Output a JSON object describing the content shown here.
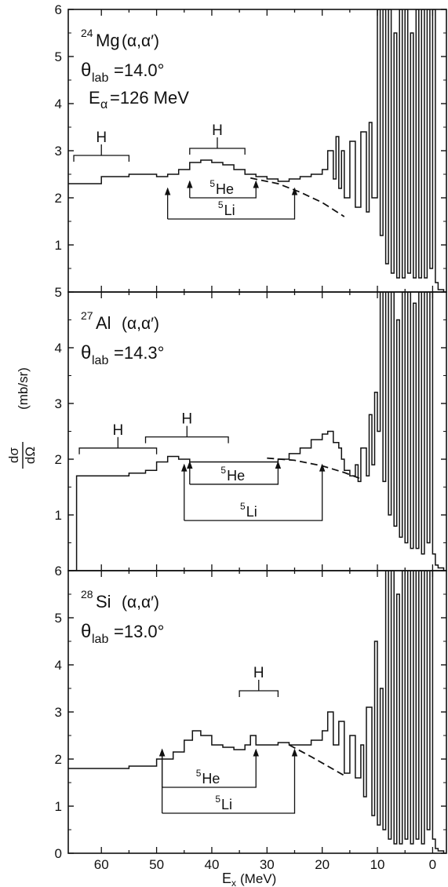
{
  "figure": {
    "ylabel_top": "dσ",
    "ylabel_bottom": "dΩ",
    "ylabel_unit": "(mb/sr)",
    "xlabel_main": "E",
    "xlabel_sub": "x",
    "xlabel_unit": "(MeV)",
    "x_ticks": [
      "60",
      "50",
      "40",
      "30",
      "20",
      "10",
      "0"
    ]
  },
  "chart_data": [
    {
      "type": "line",
      "reaction": {
        "mass": "24",
        "element": "Mg",
        "process": "(α,α′)"
      },
      "angle": {
        "symbol": "θ",
        "sub": "lab",
        "text": "=14.0°"
      },
      "energy": {
        "symbol": "E",
        "sub": "α",
        "text": "=126 MeV"
      },
      "x_reversed": true,
      "xlim": [
        -2.5,
        66
      ],
      "ylim": [
        0,
        6
      ],
      "y_ticks": [
        "6",
        "5",
        "4",
        "3",
        "2",
        "1"
      ],
      "series": [
        {
          "values_x": [
            66,
            60,
            55,
            50,
            48,
            46,
            44,
            42,
            40,
            38,
            36,
            34,
            32,
            30,
            28,
            26,
            24,
            22,
            20,
            19,
            18,
            17.5,
            17,
            16.5,
            16,
            15,
            14,
            13,
            12,
            11.5,
            11,
            10,
            9.5,
            9,
            8.5,
            8,
            7.5,
            7,
            6.5,
            6,
            5.5,
            5,
            4.5,
            4,
            3.5,
            3,
            2.5,
            2,
            1.5,
            1,
            0.5,
            0,
            -0.5,
            -1,
            -2
          ],
          "values_y": [
            2.3,
            2.45,
            2.5,
            2.45,
            2.5,
            2.6,
            2.75,
            2.8,
            2.75,
            2.7,
            2.6,
            2.5,
            2.45,
            2.4,
            2.35,
            2.4,
            2.45,
            2.5,
            2.6,
            3.0,
            2.4,
            3.3,
            2.2,
            3.0,
            2.0,
            3.2,
            1.8,
            3.4,
            1.7,
            3.6,
            2.0,
            6.0,
            1.2,
            6.0,
            0.6,
            6.0,
            0.4,
            5.5,
            0.3,
            6.0,
            0.3,
            6.0,
            0.4,
            5.5,
            0.3,
            6.0,
            0.3,
            6.0,
            0.3,
            6.0,
            0.5,
            6.0,
            0.2,
            0.05,
            0.0
          ]
        },
        {
          "name": "background",
          "values_x": [
            33,
            28,
            24,
            20,
            16
          ],
          "values_y": [
            2.42,
            2.3,
            2.12,
            1.9,
            1.6
          ],
          "style": "dashed"
        }
      ],
      "brackets": [
        {
          "label": "H",
          "x_from": 65,
          "x_to": 55
        },
        {
          "label": "H",
          "x_from": 44,
          "x_to": 34
        }
      ],
      "arrows": [
        {
          "label": "5He",
          "mass": "5",
          "element": "He",
          "x_from": 44,
          "x_to": 32
        },
        {
          "label": "5Li",
          "mass": "5",
          "element": "Li",
          "x_from": 48,
          "x_to": 25
        }
      ]
    },
    {
      "type": "line",
      "reaction": {
        "mass": "27",
        "element": "Al",
        "process": "(α,α′)"
      },
      "angle": {
        "symbol": "θ",
        "sub": "lab",
        "text": "=14.3°"
      },
      "x_reversed": true,
      "xlim": [
        -2.5,
        66
      ],
      "ylim": [
        0,
        5
      ],
      "y_ticks": [
        "5",
        "4",
        "3",
        "2",
        "1"
      ],
      "series": [
        {
          "values_x": [
            65,
            64.5,
            60,
            55,
            52,
            50,
            48,
            46,
            44,
            40,
            36,
            32,
            28,
            26,
            24,
            22,
            20,
            19,
            18,
            17,
            16.5,
            16,
            15,
            14,
            13.5,
            13,
            12,
            11.5,
            11,
            10.5,
            10,
            9.5,
            9,
            8.5,
            8,
            7.5,
            7,
            6.5,
            6,
            5.5,
            5,
            4.5,
            4,
            3.5,
            3,
            2.5,
            2,
            1.5,
            1,
            0.5,
            0,
            -0.5,
            -1,
            -2
          ],
          "values_y": [
            0.0,
            1.7,
            1.7,
            1.75,
            1.8,
            1.95,
            2.05,
            2.0,
            1.95,
            1.95,
            1.95,
            1.95,
            2.0,
            2.1,
            2.2,
            2.35,
            2.45,
            2.5,
            2.3,
            2.2,
            2.0,
            1.8,
            1.7,
            1.9,
            1.6,
            2.2,
            1.7,
            2.8,
            1.9,
            3.2,
            2.5,
            5.0,
            1.6,
            5.0,
            1.0,
            5.0,
            0.8,
            4.5,
            0.6,
            5.0,
            0.5,
            5.0,
            0.4,
            4.8,
            0.4,
            5.0,
            0.3,
            5.0,
            0.5,
            5.0,
            0.3,
            0.1,
            0.05,
            0.0
          ]
        },
        {
          "name": "background",
          "values_x": [
            30,
            25,
            20,
            16,
            13
          ],
          "values_y": [
            2.02,
            1.98,
            1.88,
            1.76,
            1.65
          ],
          "style": "dashed"
        }
      ],
      "brackets": [
        {
          "label": "H",
          "x_from": 64,
          "x_to": 50
        },
        {
          "label": "H",
          "x_from": 52,
          "x_to": 37
        }
      ],
      "arrows": [
        {
          "label": "5He",
          "mass": "5",
          "element": "He",
          "x_from": 44,
          "x_to": 28
        },
        {
          "label": "5Li",
          "mass": "5",
          "element": "Li",
          "x_from": 45,
          "x_to": 20
        }
      ]
    },
    {
      "type": "line",
      "reaction": {
        "mass": "28",
        "element": "Si",
        "process": "(α,α′)"
      },
      "angle": {
        "symbol": "θ",
        "sub": "lab",
        "text": "=13.0°"
      },
      "x_reversed": true,
      "xlim": [
        -2.5,
        66
      ],
      "ylim": [
        0,
        6
      ],
      "y_ticks": [
        "6",
        "5",
        "4",
        "3",
        "2",
        "1",
        "0"
      ],
      "series": [
        {
          "values_x": [
            66,
            60,
            55,
            50,
            47,
            45,
            43.5,
            42,
            40,
            38,
            36,
            34,
            33,
            32,
            30,
            28,
            26,
            24,
            22,
            20,
            19,
            18,
            17,
            16,
            15,
            14,
            13,
            12.5,
            12,
            11,
            10.5,
            10,
            9.5,
            9,
            8.5,
            8,
            7.5,
            7,
            6.5,
            6,
            5.5,
            5,
            4.5,
            4,
            3.5,
            3,
            2.5,
            2,
            1.5,
            1,
            0.5,
            0,
            -0.5,
            -1,
            -2
          ],
          "values_y": [
            1.8,
            1.8,
            1.85,
            2.0,
            2.15,
            2.4,
            2.6,
            2.5,
            2.3,
            2.25,
            2.2,
            2.3,
            2.5,
            2.3,
            2.3,
            2.35,
            2.3,
            2.3,
            2.4,
            2.6,
            3.0,
            2.3,
            2.8,
            1.7,
            2.5,
            1.6,
            2.3,
            1.2,
            3.1,
            0.8,
            4.5,
            0.6,
            3.5,
            0.5,
            6.0,
            0.3,
            6.0,
            0.2,
            5.5,
            0.2,
            6.0,
            0.3,
            6.0,
            0.2,
            6.0,
            0.3,
            6.0,
            0.2,
            6.0,
            0.5,
            6.0,
            0.3,
            0.1,
            0.05,
            0.0
          ]
        },
        {
          "name": "background",
          "values_x": [
            26,
            22,
            19,
            16
          ],
          "values_y": [
            2.3,
            2.05,
            1.85,
            1.65
          ],
          "style": "dashed"
        }
      ],
      "brackets": [
        {
          "label": "H",
          "x_from": 35,
          "x_to": 28
        }
      ],
      "arrows": [
        {
          "label": "5He",
          "mass": "5",
          "element": "He",
          "x_from": 49,
          "x_to": 32
        },
        {
          "label": "5Li",
          "mass": "5",
          "element": "Li",
          "x_from": 49,
          "x_to": 25
        }
      ]
    }
  ]
}
